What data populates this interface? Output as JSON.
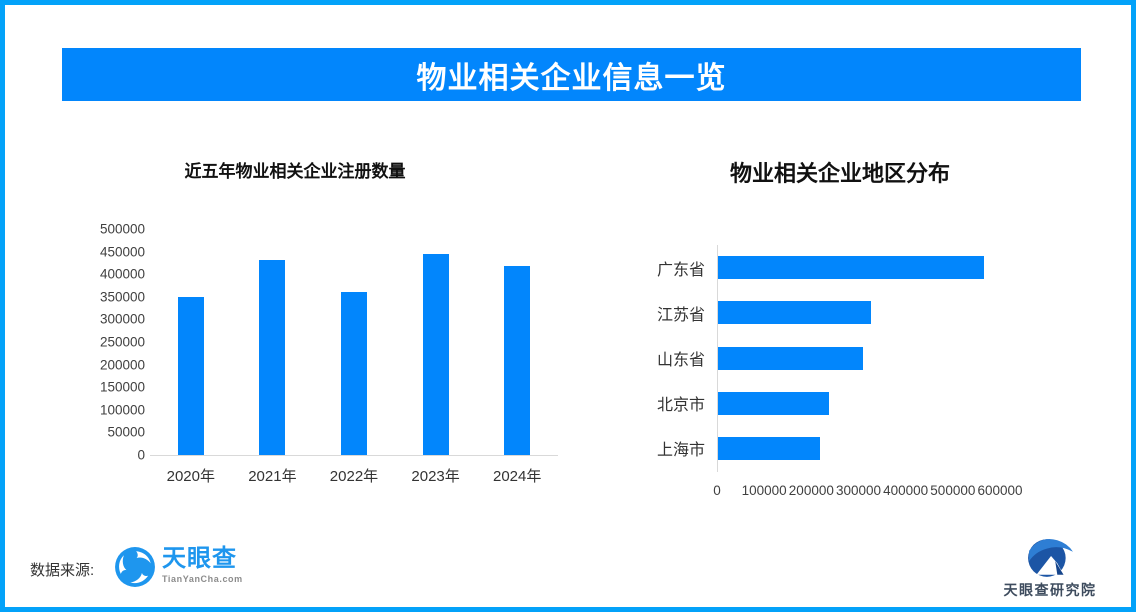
{
  "header": {
    "title": "物业相关企业信息一览"
  },
  "chart_data": [
    {
      "type": "bar",
      "title": "近五年物业相关企业注册数量",
      "categories": [
        "2020年",
        "2021年",
        "2022年",
        "2023年",
        "2024年"
      ],
      "values": [
        350000,
        432000,
        360000,
        445000,
        418000
      ],
      "ylim": [
        0,
        500000
      ],
      "y_ticks": [
        0,
        50000,
        100000,
        150000,
        200000,
        250000,
        300000,
        350000,
        400000,
        450000,
        500000
      ],
      "grid": false,
      "legend": "none",
      "bar_color": "#0286FC"
    },
    {
      "type": "horizontal-bar",
      "title": "物业相关企业地区分布",
      "categories": [
        "广东省",
        "江苏省",
        "山东省",
        "北京市",
        "上海市"
      ],
      "values": [
        565000,
        324000,
        307000,
        235000,
        216000
      ],
      "xlim": [
        0,
        600000
      ],
      "x_ticks": [
        0,
        100000,
        200000,
        300000,
        400000,
        500000,
        600000
      ],
      "grid": false,
      "legend": "none",
      "bar_color": "#0286FC"
    }
  ],
  "footer": {
    "source_label": "数据来源:",
    "tianyancha_name": "天眼查",
    "tianyancha_sub": "TianYanCha.com",
    "institute_name": "天眼查研究院"
  },
  "colors": {
    "accent": "#0286FC",
    "border": "#03A2F9",
    "axis_line": "#D9D9D9",
    "tick_text": "#404040",
    "tyc_blue": "#1E96EE",
    "institute_navy": "#1C55A5"
  }
}
